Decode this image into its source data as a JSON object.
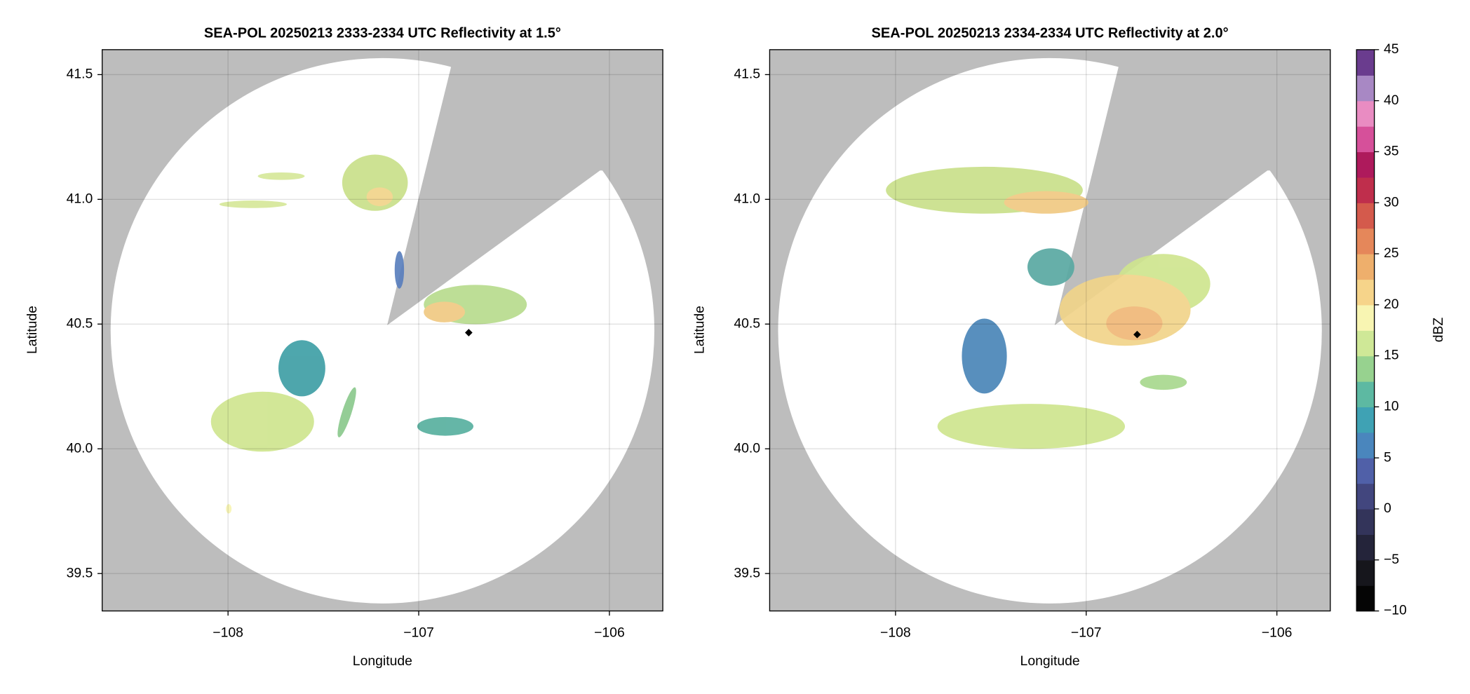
{
  "chart_data": [
    {
      "type": "map",
      "title": "SEA-POL 20250213 2333-2334 UTC Reflectivity at 1.5°",
      "xlabel": "Longitude",
      "ylabel": "Latitude",
      "xlim": [
        -108.66,
        -105.72
      ],
      "ylim": [
        39.35,
        41.6
      ],
      "xticks": [
        {
          "value": -108,
          "label": "−108"
        },
        {
          "value": -107,
          "label": "−107"
        },
        {
          "value": -106,
          "label": "−106"
        }
      ],
      "yticks": [
        39.5,
        {
          "value": 40,
          "label": "40.0"
        },
        40.5,
        {
          "value": 41,
          "label": "41.0"
        },
        41.5
      ],
      "grid": true
    },
    {
      "type": "map",
      "title": "SEA-POL 20250213 2334-2334 UTC Reflectivity at 2.0°",
      "xlabel": "Longitude",
      "ylabel": "Latitude",
      "xlim": [
        -108.66,
        -105.72
      ],
      "ylim": [
        39.35,
        41.6
      ],
      "xticks": [
        {
          "value": -108,
          "label": "−108"
        },
        {
          "value": -107,
          "label": "−107"
        },
        {
          "value": -106,
          "label": "−106"
        }
      ],
      "yticks": [
        39.5,
        {
          "value": 40,
          "label": "40.0"
        },
        40.5,
        {
          "value": 41,
          "label": "41.0"
        },
        41.5
      ],
      "grid": true,
      "colorbar": {
        "label": "dBZ",
        "lim": [
          -10,
          45
        ],
        "ticks": [
          {
            "value": -10,
            "label": "−10"
          },
          {
            "value": -5,
            "label": "−5"
          },
          0,
          5,
          10,
          15,
          20,
          25,
          30,
          35,
          40,
          45
        ],
        "colors": [
          "#050505",
          "#16161c",
          "#24243a",
          "#33345a",
          "#42467e",
          "#5060a8",
          "#4a86bd",
          "#3fa2b4",
          "#5db9a2",
          "#97d28f",
          "#cfe897",
          "#f8f5b2",
          "#f6d48a",
          "#eeaf6c",
          "#e5875a",
          "#d45a4c",
          "#bf2e4c",
          "#ae1a5c",
          "#d6509a",
          "#e98cc2",
          "#a888c4",
          "#6a3c8e"
        ]
      }
    }
  ]
}
